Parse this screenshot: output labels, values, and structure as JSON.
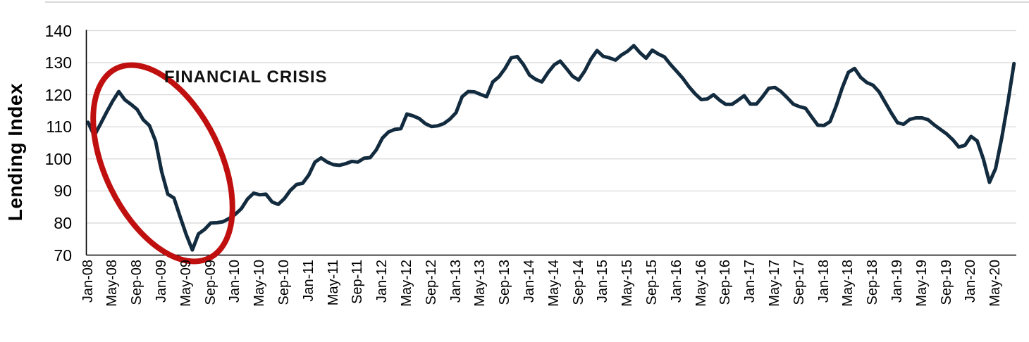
{
  "chart_data": {
    "type": "line",
    "title": "",
    "ylabel": "Lending Index",
    "ylim": [
      70,
      140
    ],
    "y_ticks": [
      140,
      130,
      120,
      110,
      100,
      90,
      80,
      70
    ],
    "grid": true,
    "frequency": "monthly",
    "start_month": "Jan-08",
    "end_month": "Aug-20",
    "x_tick_labels": [
      "Jan-08",
      "May-08",
      "Sep-08",
      "Jan-09",
      "May-09",
      "Sep-09",
      "Jan-10",
      "May-10",
      "Sep-10",
      "Jan-11",
      "May-11",
      "Sep-11",
      "Jan-12",
      "May-12",
      "Sep-12",
      "Jan-13",
      "May-13",
      "Sep-13",
      "Jan-14",
      "May-14",
      "Sep-14",
      "Jan-15",
      "May-15",
      "Sep-15",
      "Jan-16",
      "May-16",
      "Sep-16",
      "Jan-17",
      "May-17",
      "Sep-17",
      "Jan-18",
      "May-18",
      "Sep-18",
      "Jan-19",
      "May-19",
      "Sep-19",
      "Jan-20",
      "May-20"
    ],
    "values": [
      111.4,
      107.2,
      110.8,
      114.5,
      118,
      121,
      118.4,
      117,
      115.4,
      112.2,
      110.4,
      105.6,
      96,
      89,
      87.8,
      82,
      76.4,
      71.6,
      76.6,
      78,
      80,
      80.1,
      80.4,
      81.4,
      82.7,
      84.5,
      87.5,
      89.3,
      88.8,
      89,
      86.6,
      85.8,
      87.6,
      90.2,
      92,
      92.4,
      95,
      99,
      100.3,
      99,
      98.2,
      98,
      98.5,
      99.2,
      99,
      100.2,
      100.4,
      102.8,
      106.5,
      108.4,
      109.2,
      109.4,
      114,
      113.4,
      112.6,
      111,
      110.1,
      110.3,
      111,
      112.4,
      114.4,
      119.4,
      121,
      120.9,
      120.1,
      119.4,
      124,
      125.6,
      128.2,
      131.5,
      131.9,
      129.4,
      126.1,
      124.8,
      124,
      126.9,
      129.3,
      130.5,
      128.2,
      125.8,
      124.6,
      127.4,
      131.1,
      133.8,
      132,
      131.5,
      130.8,
      132.4,
      133.6,
      135.3,
      133.1,
      131.4,
      133.9,
      132.7,
      131.8,
      129.4,
      127.3,
      125.1,
      122.5,
      120.3,
      118.5,
      118.7,
      120,
      118.3,
      117,
      117,
      118.3,
      119.7,
      117.1,
      117.1,
      119.4,
      122,
      122.3,
      121,
      119.1,
      117.1,
      116.3,
      115.8,
      113.1,
      110.5,
      110.4,
      111.6,
      116.5,
      122.2,
      127,
      128.2,
      125.4,
      123.8,
      123,
      120.9,
      117.6,
      114.3,
      111.3,
      110.8,
      112.3,
      112.8,
      112.8,
      112.2,
      110.6,
      109.2,
      107.8,
      106,
      103.7,
      104.2,
      107,
      105.6,
      100,
      92.7,
      97,
      106.5,
      117.5,
      129.7
    ],
    "line_color": "#132b3e",
    "grid_color": "#d9d9d9",
    "axis_color": "#000000",
    "annotation": {
      "text": "FINANCIAL CRISIS",
      "color": "#111111"
    },
    "annotation_ellipse": {
      "color": "#c00f0f"
    },
    "legend_position": "none"
  }
}
